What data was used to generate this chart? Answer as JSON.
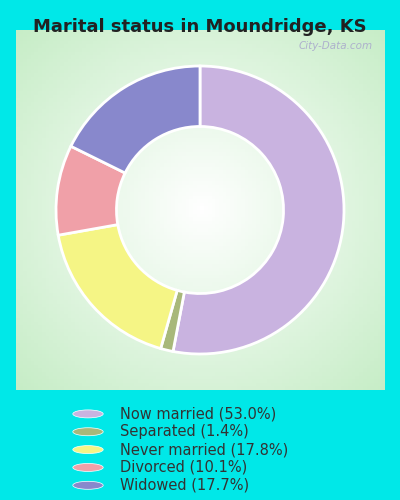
{
  "title": "Marital status in Moundridge, KS",
  "slices": [
    {
      "label": "Now married (53.0%)",
      "value": 53.0,
      "color": "#c9b3e0"
    },
    {
      "label": "Separated (1.4%)",
      "value": 1.4,
      "color": "#a8b87a"
    },
    {
      "label": "Never married (17.8%)",
      "value": 17.8,
      "color": "#f5f585"
    },
    {
      "label": "Divorced (10.1%)",
      "value": 10.1,
      "color": "#f0a0a8"
    },
    {
      "label": "Widowed (17.7%)",
      "value": 17.7,
      "color": "#8888cc"
    }
  ],
  "bg_color_outer": "#00e8e8",
  "bg_color_inner_center": "#ffffff",
  "bg_color_inner_edge": "#c8e8c8",
  "title_fontsize": 13,
  "legend_fontsize": 10.5,
  "title_color": "#222222",
  "legend_text_color": "#333333",
  "watermark": "City-Data.com"
}
